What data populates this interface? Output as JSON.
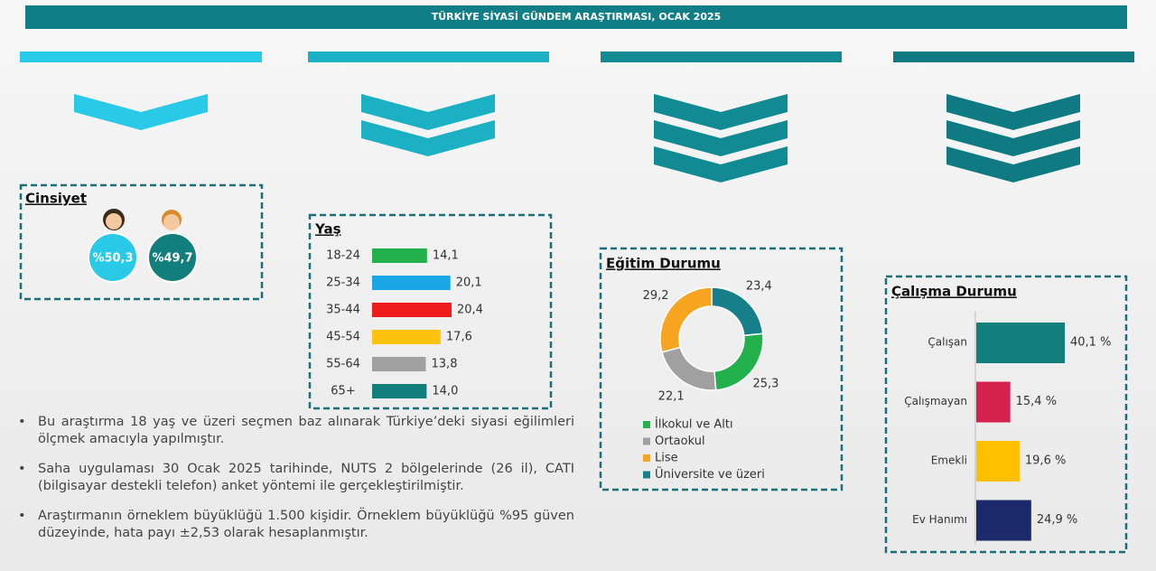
{
  "header": {
    "title": "TÜRKİYE SİYASİ GÜNDEM ARAŞTIRMASI, OCAK 2025"
  },
  "gender": {
    "title": "Cinsiyet",
    "female": "%50,3",
    "male": "%49,7"
  },
  "chart_data": [
    {
      "type": "hbar",
      "title": "Yaş",
      "categories": [
        "18-24",
        "25-34",
        "35-44",
        "45-54",
        "55-64",
        "65+"
      ],
      "values": [
        14.1,
        20.1,
        20.4,
        17.6,
        13.8,
        14.0
      ],
      "value_labels": [
        "14,1",
        "20,1",
        "20,4",
        "17,6",
        "13,8",
        "14,0"
      ],
      "colors": [
        "#22b14c",
        "#1aa7e8",
        "#ee1c1c",
        "#ffc20e",
        "#a0a0a0",
        "#137f7c"
      ]
    },
    {
      "type": "donut",
      "title": "Eğitim Durumu",
      "categories": [
        "İlkokul ve Altı",
        "Ortaokul",
        "Lise",
        "Üniversite ve üzeri"
      ],
      "values": [
        25.3,
        22.1,
        29.2,
        23.4
      ],
      "value_labels": [
        "25,3",
        "22,1",
        "29,2",
        "23,4"
      ],
      "colors": [
        "#22b14c",
        "#a0a0a0",
        "#f7a520",
        "#167f8a"
      ]
    },
    {
      "type": "hbar2",
      "title": "Çalışma Durumu",
      "categories": [
        "Çalışan",
        "Çalışmayan",
        "Emekli",
        "Ev Hanımı"
      ],
      "values": [
        40.1,
        15.4,
        19.6,
        24.9
      ],
      "value_labels": [
        "40,1 %",
        "15,4 %",
        "19,6 %",
        "24,9 %"
      ],
      "colors": [
        "#137f7c",
        "#d6224e",
        "#ffc000",
        "#1c2a6b"
      ]
    }
  ],
  "notes": [
    "Bu araştırma 18 yaş ve üzeri seçmen baz alınarak Türkiye’deki siyasi eğilimleri ölçmek amacıyla yapılmıştır.",
    "Saha uygulaması 30 Ocak 2025 tarihinde, NUTS 2 bölgelerinde (26 il), CATI (bilgisayar destekli telefon) anket yöntemi ile gerçekleştirilmiştir.",
    "Araştırmanın örneklem büyüklüğü 1.500 kişidir. Örneklem büyüklüğü %95 güven düzeyinde, hata payı  ±2,53 olarak hesaplanmıştır."
  ]
}
